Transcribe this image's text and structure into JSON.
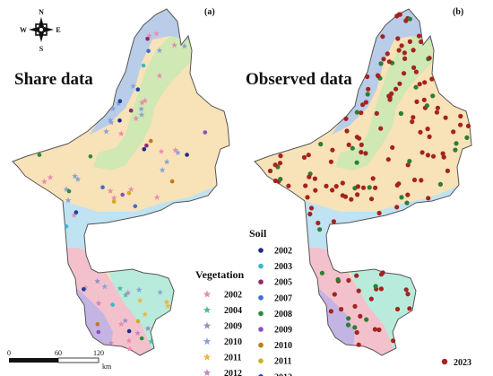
{
  "compass": {
    "n": "N",
    "s": "S",
    "e": "E",
    "w": "W"
  },
  "panels": [
    {
      "label": "(a)",
      "title": "Share data"
    },
    {
      "label": "(b)",
      "title": "Observed data"
    }
  ],
  "legend_vegetation": {
    "title": "Vegetation",
    "items": [
      {
        "year": "2002",
        "color": "#e98bb0"
      },
      {
        "year": "2004",
        "color": "#57b9a0"
      },
      {
        "year": "2009",
        "color": "#9b8ec2"
      },
      {
        "year": "2010",
        "color": "#8aa2d6"
      },
      {
        "year": "2011",
        "color": "#f0b43c"
      },
      {
        "year": "2012",
        "color": "#c886c6"
      }
    ]
  },
  "legend_soil": {
    "title": "Soil",
    "items": [
      {
        "year": "2002",
        "color": "#1b2a8c"
      },
      {
        "year": "2003",
        "color": "#3fb7c6"
      },
      {
        "year": "2005",
        "color": "#8c2a6e"
      },
      {
        "year": "2007",
        "color": "#3a6fcf"
      },
      {
        "year": "2008",
        "color": "#2e8b3e"
      },
      {
        "year": "2009",
        "color": "#8a4fc2"
      },
      {
        "year": "2010",
        "color": "#c07a1e"
      },
      {
        "year": "2011",
        "color": "#c9b21e"
      },
      {
        "year": "2012",
        "color": "#1f3fa0"
      }
    ]
  },
  "legend_observed": {
    "year": "2023",
    "color": "#a5231e"
  },
  "scale_bar": {
    "ticks": [
      "0",
      "60",
      "120"
    ],
    "unit": "km"
  },
  "zone_colors": {
    "north_blue": "#b9cce8",
    "green_belt": "#cfe8b4",
    "tan": "#f8e2b8",
    "cyan": "#bfe3f2",
    "teal": "#b8ebdc",
    "pink": "#f3c1cc",
    "purple": "#c4b4e4",
    "border": "#555555"
  }
}
